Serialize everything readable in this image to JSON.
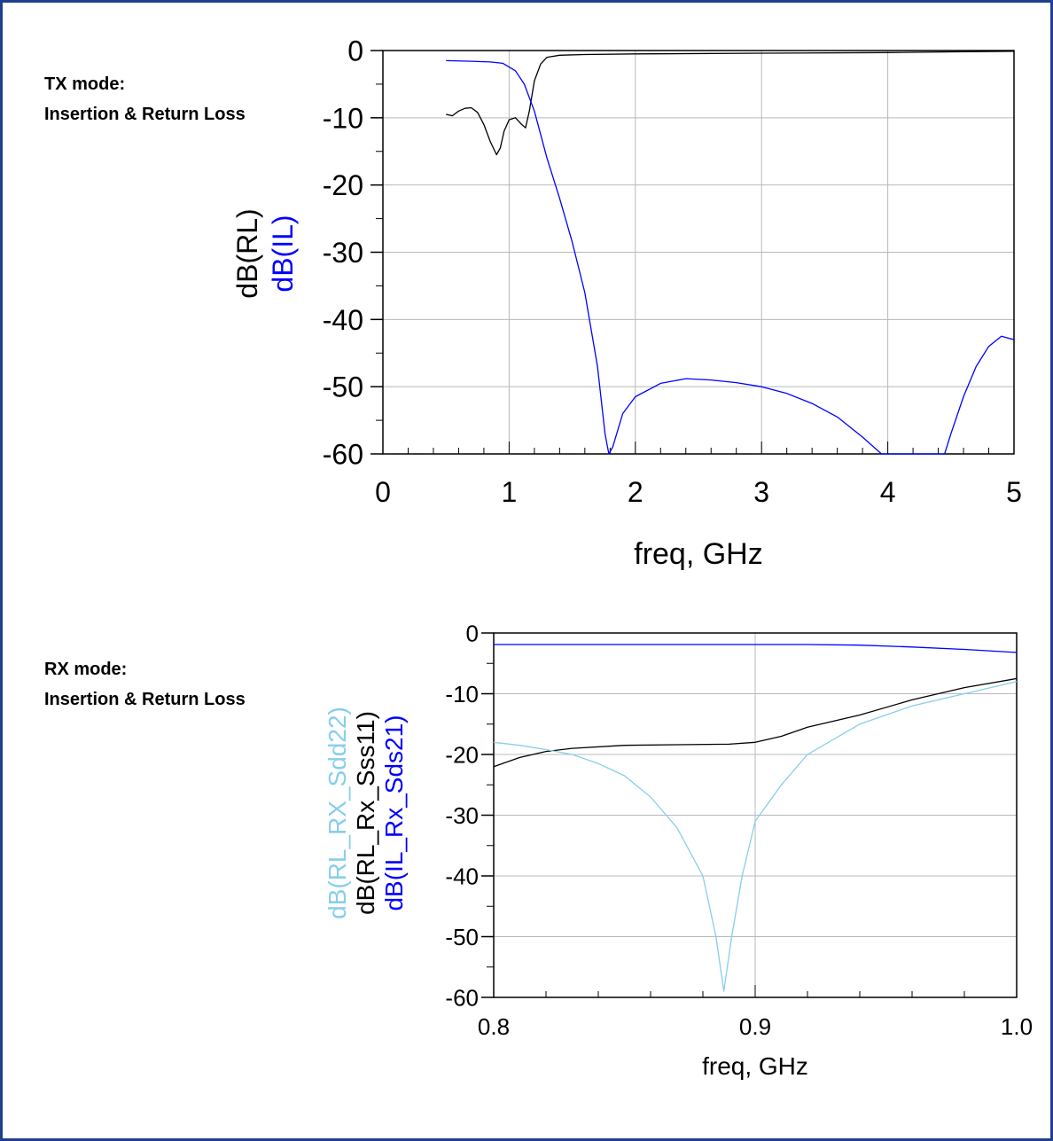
{
  "panels": {
    "tx": {
      "label_line1": "TX mode:",
      "label_line2": "Insertion & Return Loss"
    },
    "rx": {
      "label_line1": "RX mode:",
      "label_line2": "Insertion & Return Loss"
    }
  },
  "colors": {
    "frame": "#1f3f8f",
    "black": "#000000",
    "blue": "#0000ff",
    "light_blue": "#87ceeb",
    "grid": "#b8b8b8"
  },
  "chart_data": [
    {
      "type": "line",
      "xlabel": "freq, GHz",
      "xlim": [
        0,
        5
      ],
      "ylim": [
        -60,
        0
      ],
      "xticks": [
        0,
        1,
        2,
        3,
        4,
        5
      ],
      "xtick_labels": [
        "0",
        "1",
        "2",
        "3",
        "4",
        "5"
      ],
      "yticks": [
        0,
        -10,
        -20,
        -30,
        -40,
        -50,
        -60
      ],
      "ytick_labels": [
        "0",
        "-10",
        "-20",
        "-30",
        "-40",
        "-50",
        "-60"
      ],
      "grid": true,
      "ylabels": [
        {
          "text": "dB(RL)",
          "color": "#000000"
        },
        {
          "text": "dB(IL)",
          "color": "#0000ff"
        }
      ],
      "series": [
        {
          "name": "dB(RL)",
          "color": "#000000",
          "points": [
            [
              0.5,
              -9.5
            ],
            [
              0.55,
              -9.7
            ],
            [
              0.6,
              -9.0
            ],
            [
              0.65,
              -8.6
            ],
            [
              0.7,
              -8.5
            ],
            [
              0.75,
              -9.2
            ],
            [
              0.8,
              -11.0
            ],
            [
              0.85,
              -13.5
            ],
            [
              0.9,
              -15.5
            ],
            [
              0.93,
              -14.5
            ],
            [
              0.96,
              -12.0
            ],
            [
              1.0,
              -10.3
            ],
            [
              1.05,
              -10.0
            ],
            [
              1.1,
              -11.0
            ],
            [
              1.13,
              -11.5
            ],
            [
              1.16,
              -9.0
            ],
            [
              1.2,
              -4.5
            ],
            [
              1.25,
              -2.0
            ],
            [
              1.3,
              -1.0
            ],
            [
              1.4,
              -0.7
            ],
            [
              1.6,
              -0.6
            ],
            [
              2.0,
              -0.5
            ],
            [
              3.0,
              -0.4
            ],
            [
              4.0,
              -0.3
            ],
            [
              4.5,
              -0.2
            ],
            [
              5.0,
              -0.1
            ]
          ]
        },
        {
          "name": "dB(IL)",
          "color": "#0000ff",
          "points": [
            [
              0.5,
              -1.5
            ],
            [
              0.7,
              -1.6
            ],
            [
              0.85,
              -1.7
            ],
            [
              0.95,
              -1.9
            ],
            [
              1.05,
              -3.0
            ],
            [
              1.12,
              -5.0
            ],
            [
              1.2,
              -9.0
            ],
            [
              1.3,
              -16.0
            ],
            [
              1.4,
              -22.0
            ],
            [
              1.5,
              -28.5
            ],
            [
              1.6,
              -36.0
            ],
            [
              1.7,
              -47.0
            ],
            [
              1.76,
              -57.0
            ],
            [
              1.79,
              -61.0
            ],
            [
              1.82,
              -59.0
            ],
            [
              1.9,
              -54.0
            ],
            [
              2.0,
              -51.5
            ],
            [
              2.2,
              -49.5
            ],
            [
              2.4,
              -48.8
            ],
            [
              2.6,
              -49.0
            ],
            [
              2.8,
              -49.4
            ],
            [
              3.0,
              -50.0
            ],
            [
              3.2,
              -51.0
            ],
            [
              3.4,
              -52.5
            ],
            [
              3.6,
              -54.5
            ],
            [
              3.8,
              -57.5
            ],
            [
              3.95,
              -60.5
            ],
            [
              4.4,
              -61.0
            ],
            [
              4.45,
              -60.0
            ],
            [
              4.5,
              -57.0
            ],
            [
              4.6,
              -51.5
            ],
            [
              4.7,
              -47.0
            ],
            [
              4.8,
              -44.0
            ],
            [
              4.9,
              -42.5
            ],
            [
              5.0,
              -43.0
            ]
          ]
        }
      ]
    },
    {
      "type": "line",
      "xlabel": "freq, GHz",
      "xlim": [
        0.8,
        1.0
      ],
      "ylim": [
        -60,
        0
      ],
      "xticks": [
        0.8,
        0.9,
        1.0
      ],
      "xtick_labels": [
        "0.8",
        "0.9",
        "1.0"
      ],
      "yticks": [
        0,
        -10,
        -20,
        -30,
        -40,
        -50,
        -60
      ],
      "ytick_labels": [
        "0",
        "-10",
        "-20",
        "-30",
        "-40",
        "-50",
        "-60"
      ],
      "grid": true,
      "ylabels": [
        {
          "text": "dB(RL_RX_Sdd22)",
          "color": "#87ceeb"
        },
        {
          "text": "dB(RL_Rx_Sss11)",
          "color": "#000000"
        },
        {
          "text": "dB(IL_Rx_Sds21)",
          "color": "#0000ff"
        }
      ],
      "series": [
        {
          "name": "dB(IL_Rx_Sds21)",
          "color": "#0000ff",
          "points": [
            [
              0.8,
              -1.9
            ],
            [
              0.85,
              -1.9
            ],
            [
              0.9,
              -1.9
            ],
            [
              0.92,
              -1.9
            ],
            [
              0.94,
              -2.0
            ],
            [
              0.96,
              -2.3
            ],
            [
              0.98,
              -2.7
            ],
            [
              1.0,
              -3.2
            ]
          ]
        },
        {
          "name": "dB(RL_Rx_Sss11)",
          "color": "#000000",
          "points": [
            [
              0.8,
              -22.0
            ],
            [
              0.81,
              -20.5
            ],
            [
              0.82,
              -19.5
            ],
            [
              0.83,
              -19.0
            ],
            [
              0.85,
              -18.5
            ],
            [
              0.87,
              -18.4
            ],
            [
              0.89,
              -18.3
            ],
            [
              0.9,
              -18.0
            ],
            [
              0.91,
              -17.0
            ],
            [
              0.92,
              -15.5
            ],
            [
              0.94,
              -13.5
            ],
            [
              0.96,
              -11.0
            ],
            [
              0.98,
              -9.0
            ],
            [
              1.0,
              -7.5
            ]
          ]
        },
        {
          "name": "dB(RL_RX_Sdd22)",
          "color": "#87ceeb",
          "points": [
            [
              0.8,
              -18.0
            ],
            [
              0.81,
              -18.5
            ],
            [
              0.82,
              -19.2
            ],
            [
              0.83,
              -20.0
            ],
            [
              0.84,
              -21.5
            ],
            [
              0.85,
              -23.5
            ],
            [
              0.86,
              -27.0
            ],
            [
              0.87,
              -32.0
            ],
            [
              0.88,
              -40.0
            ],
            [
              0.885,
              -50.0
            ],
            [
              0.888,
              -59.0
            ],
            [
              0.891,
              -50.0
            ],
            [
              0.895,
              -40.0
            ],
            [
              0.9,
              -31.0
            ],
            [
              0.91,
              -25.0
            ],
            [
              0.92,
              -20.0
            ],
            [
              0.94,
              -15.0
            ],
            [
              0.96,
              -12.0
            ],
            [
              0.98,
              -10.0
            ],
            [
              1.0,
              -8.0
            ]
          ]
        }
      ]
    }
  ]
}
